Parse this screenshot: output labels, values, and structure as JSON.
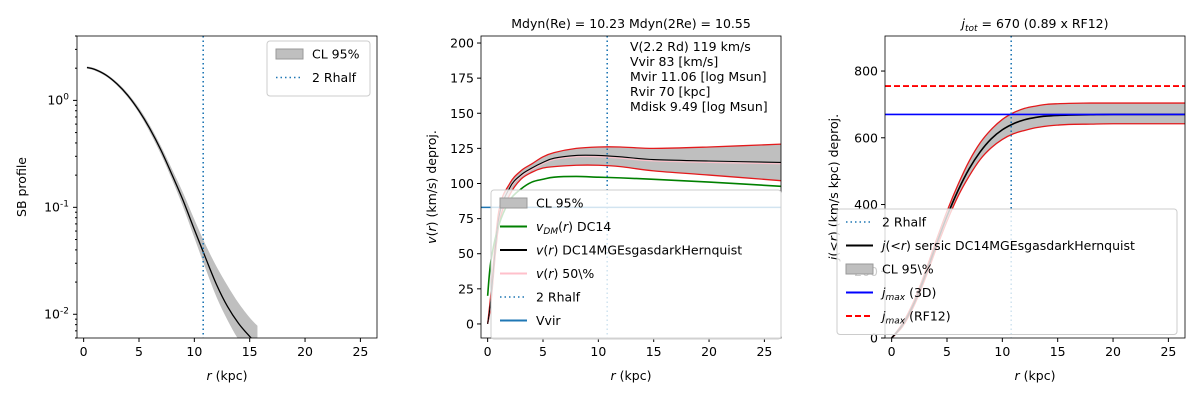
{
  "chart_data": [
    {
      "type": "line",
      "title": "",
      "xlabel": "r (kpc)",
      "ylabel": "SB profile",
      "xlim": [
        -0.6,
        26.5
      ],
      "ylim_log": [
        0.006,
        4.0
      ],
      "yscale": "log",
      "xticks": [
        0,
        5,
        10,
        15,
        20,
        25
      ],
      "yticks": [
        {
          "v": 1,
          "label": "10^0"
        },
        {
          "v": 0.1,
          "label": "10^-1"
        },
        {
          "v": 0.01,
          "label": "10^-2"
        }
      ],
      "rhalf2": 10.8,
      "band": {
        "x": [
          0.3,
          1,
          2,
          3,
          4,
          5,
          6,
          7,
          8,
          9,
          10,
          11,
          12,
          13,
          14,
          15,
          15.7
        ],
        "lo": [
          1.98,
          1.9,
          1.68,
          1.38,
          1.06,
          0.76,
          0.5,
          0.31,
          0.18,
          0.1,
          0.052,
          0.027,
          0.0145,
          0.0088,
          0.0058,
          0.0045,
          0.0043
        ],
        "hi": [
          2.08,
          2.0,
          1.78,
          1.48,
          1.16,
          0.85,
          0.58,
          0.37,
          0.225,
          0.135,
          0.077,
          0.045,
          0.028,
          0.0185,
          0.0127,
          0.0093,
          0.0078
        ]
      },
      "series": [
        {
          "name": "SB",
          "color": "#000000",
          "x": [
            0.3,
            1,
            2,
            3,
            4,
            5,
            6,
            7,
            8,
            9,
            10,
            11,
            12,
            13,
            14,
            15,
            15.5
          ],
          "y": [
            2.03,
            1.95,
            1.73,
            1.43,
            1.11,
            0.8,
            0.54,
            0.34,
            0.2,
            0.115,
            0.062,
            0.034,
            0.019,
            0.0118,
            0.0082,
            0.0062,
            0.0055
          ]
        }
      ],
      "legend": [
        {
          "label": "CL 95%",
          "kind": "band"
        },
        {
          "label": "2 Rhalf",
          "kind": "dotted"
        }
      ],
      "legend_position": "top-right"
    },
    {
      "type": "line",
      "title": "Mdyn(Re) = 10.23  Mdyn(2Re) = 10.55",
      "xlabel": "r (kpc)",
      "ylabel": "v(r) (km/s) deproj.",
      "xlim": [
        -0.6,
        26.5
      ],
      "ylim": [
        -10,
        205
      ],
      "xticks": [
        0,
        5,
        10,
        15,
        20,
        25
      ],
      "yticks": [
        0,
        25,
        50,
        75,
        100,
        125,
        150,
        175,
        200
      ],
      "rhalf2": 10.8,
      "vvir": 83,
      "annotation": [
        "V(2.2 Rd) 119 km/s",
        "Vvir 83 [km/s]",
        "Mvir 11.06 [log Msun]",
        "Rvir 70 [kpc]",
        "Mdisk 9.49 [log Msun]"
      ],
      "band": {
        "x": [
          0,
          0.3,
          1,
          2,
          3,
          4,
          5,
          6,
          8,
          10,
          12,
          15,
          20,
          26.5
        ],
        "lo": [
          0,
          15,
          70,
          92,
          103,
          108,
          111,
          112,
          113,
          113,
          112,
          109,
          106,
          102
        ],
        "hi": [
          0,
          22,
          80,
          100,
          109,
          114,
          119,
          122,
          125,
          126,
          126,
          125,
          126,
          128
        ]
      },
      "series": [
        {
          "name": "v_DM DC14",
          "color": "#008000",
          "x": [
            0,
            0.3,
            1,
            2,
            3,
            4,
            5,
            6,
            8,
            10,
            12,
            15,
            20,
            26.5
          ],
          "y": [
            20,
            45,
            70,
            88,
            96,
            101,
            103,
            104.5,
            105,
            104.5,
            104,
            103,
            101,
            98
          ]
        },
        {
          "name": "v DC14MGEsgasdarkHernquist",
          "color": "#000000",
          "x": [
            0,
            0.3,
            1,
            2,
            3,
            4,
            5,
            6,
            8,
            10,
            12,
            15,
            20,
            26.5
          ],
          "y": [
            0,
            18,
            75,
            97,
            106,
            111,
            115,
            118,
            120,
            120,
            119,
            117,
            116,
            115
          ]
        },
        {
          "name": "v 50%",
          "color": "#ffc0cb",
          "x": [
            0,
            0.3,
            1,
            2,
            3,
            4,
            5,
            6,
            8,
            10,
            12,
            15,
            20,
            26.5
          ],
          "y": [
            0,
            17,
            74,
            96,
            105,
            110,
            114,
            117,
            119,
            119,
            118,
            116,
            115,
            114
          ]
        }
      ],
      "legend": [
        {
          "label": "CL 95%",
          "kind": "band"
        },
        {
          "label": "v_DM(r) DC14",
          "kind": "line",
          "color": "#008000"
        },
        {
          "label": "v(r) DC14MGEsgasdarkHernquist",
          "kind": "line",
          "color": "#000000"
        },
        {
          "label": "v(r) 50\\%",
          "kind": "line",
          "color": "#ffc0cb"
        },
        {
          "label": "2 Rhalf",
          "kind": "dotted"
        },
        {
          "label": "Vvir",
          "kind": "line",
          "color": "#1f77b4"
        }
      ],
      "legend_position": "lower-right"
    },
    {
      "type": "line",
      "title": "j_tot = 670 (0.89 x RF12)",
      "xlabel": "r (kpc)",
      "ylabel": "j(<r) (km/s kpc) deproj.",
      "xlim": [
        -0.6,
        26.5
      ],
      "ylim": [
        0,
        905
      ],
      "xticks": [
        0,
        5,
        10,
        15,
        20,
        25
      ],
      "yticks": [
        0,
        200,
        400,
        600,
        800
      ],
      "rhalf2": 10.8,
      "jmax_3d": 670,
      "jmax_rf12": 755,
      "band": {
        "x": [
          0,
          1,
          2,
          3,
          4,
          5,
          6,
          7,
          8,
          9,
          10,
          11,
          12,
          13,
          14,
          15,
          16,
          18,
          20,
          26.5
        ],
        "lo": [
          0,
          35,
          95,
          175,
          265,
          350,
          425,
          485,
          535,
          570,
          595,
          612,
          622,
          630,
          635,
          638,
          640,
          641,
          642,
          642
        ],
        "hi": [
          0,
          45,
          110,
          195,
          290,
          380,
          460,
          530,
          585,
          625,
          655,
          675,
          688,
          695,
          700,
          702,
          703,
          704,
          704,
          704
        ]
      },
      "series": [
        {
          "name": "j sersic",
          "color": "#000000",
          "x": [
            0,
            1,
            2,
            3,
            4,
            5,
            6,
            7,
            8,
            9,
            10,
            11,
            12,
            13,
            14,
            15,
            16,
            18,
            20,
            26.5
          ],
          "y": [
            0,
            40,
            102,
            185,
            277,
            365,
            442,
            507,
            558,
            597,
            624,
            642,
            654,
            661,
            665,
            667,
            668,
            669,
            670,
            670
          ]
        }
      ],
      "legend": [
        {
          "label": "2 Rhalf",
          "kind": "dotted"
        },
        {
          "label": "j(<r) sersic DC14MGEsgasdarkHernquist",
          "kind": "line",
          "color": "#000000"
        },
        {
          "label": "CL 95\\%",
          "kind": "band"
        },
        {
          "label": "j_max (3D)",
          "kind": "line",
          "color": "#0000ff"
        },
        {
          "label": "j_max (RF12)",
          "kind": "dashed",
          "color": "#ff0000"
        }
      ],
      "legend_position": "lower-right"
    }
  ]
}
